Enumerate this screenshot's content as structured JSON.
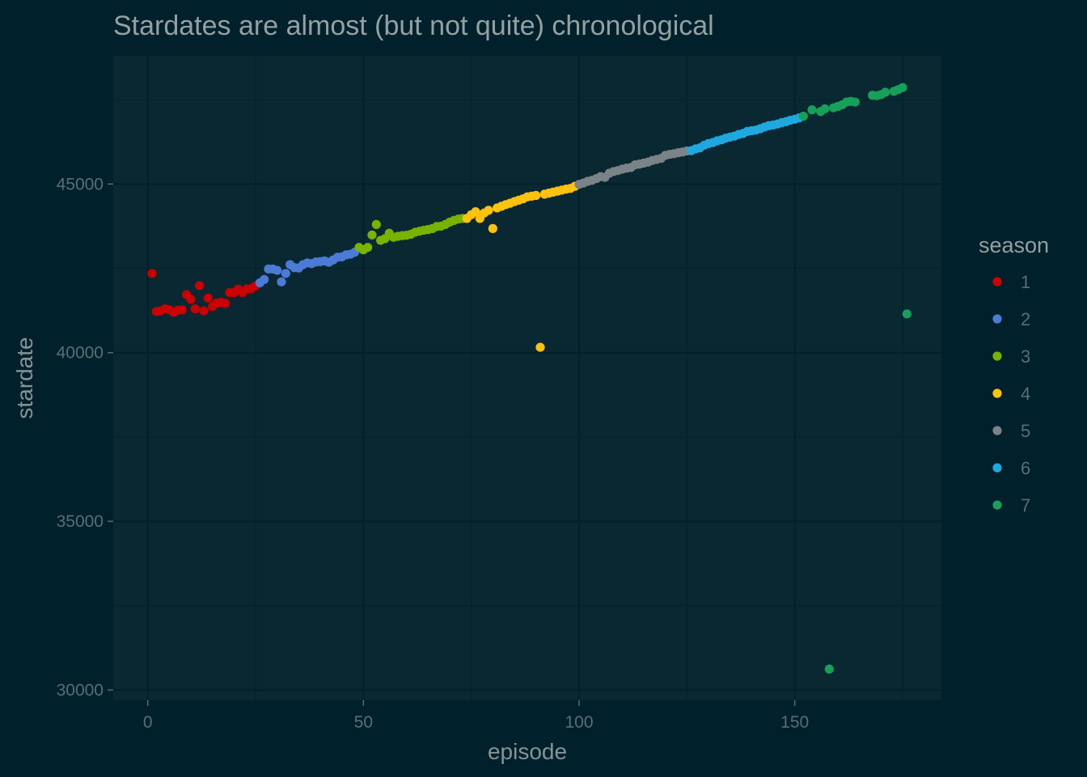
{
  "chart_data": {
    "type": "scatter",
    "title": "Stardates are almost (but not quite) chronological",
    "xlabel": "episode",
    "ylabel": "stardate",
    "xlim": [
      -8,
      184
    ],
    "ylim": [
      29700,
      48800
    ],
    "x_ticks": [
      0,
      50,
      100,
      150
    ],
    "x_tick_labels": [
      "0",
      "50",
      "100",
      "150"
    ],
    "y_ticks": [
      30000,
      35000,
      40000,
      45000
    ],
    "y_tick_labels": [
      "30000",
      "35000",
      "40000",
      "45000"
    ],
    "grid": true,
    "legend": {
      "title": "season",
      "placement": "right"
    },
    "series": [
      {
        "name": "1",
        "color": "#cc0000",
        "x": [
          1,
          2,
          3,
          4,
          5,
          6,
          7,
          8,
          9,
          10,
          11,
          12,
          13,
          14,
          15,
          16,
          17,
          18,
          19,
          20,
          21,
          22,
          23,
          24,
          25
        ],
        "y": [
          42350,
          41220,
          41240,
          41300,
          41270,
          41200,
          41260,
          41270,
          41720,
          41580,
          41300,
          41990,
          41240,
          41620,
          41370,
          41470,
          41490,
          41460,
          41780,
          41780,
          41880,
          41780,
          41890,
          41900,
          41980
        ]
      },
      {
        "name": "2",
        "color": "#4b7bd6",
        "x": [
          26,
          27,
          28,
          29,
          30,
          31,
          32,
          33,
          34,
          35,
          36,
          37,
          38,
          39,
          40,
          41,
          42,
          43,
          44,
          45,
          46,
          47,
          48
        ],
        "y": [
          42070,
          42170,
          42480,
          42480,
          42440,
          42100,
          42350,
          42610,
          42520,
          42510,
          42610,
          42660,
          42640,
          42690,
          42700,
          42720,
          42680,
          42750,
          42830,
          42840,
          42900,
          42920,
          42980
        ]
      },
      {
        "name": "3",
        "color": "#78b300",
        "x": [
          49,
          50,
          51,
          52,
          53,
          54,
          55,
          56,
          57,
          58,
          59,
          60,
          61,
          62,
          63,
          64,
          65,
          66,
          67,
          68,
          69,
          70,
          71,
          72,
          73
        ],
        "y": [
          43120,
          43050,
          43120,
          43490,
          43800,
          43330,
          43380,
          43540,
          43420,
          43450,
          43470,
          43480,
          43510,
          43570,
          43600,
          43630,
          43650,
          43680,
          43740,
          43750,
          43800,
          43870,
          43920,
          43960,
          43980
        ]
      },
      {
        "name": "4",
        "color": "#ffc20e",
        "x": [
          74,
          75,
          76,
          77,
          78,
          79,
          80,
          81,
          82,
          83,
          84,
          85,
          86,
          87,
          88,
          89,
          90,
          91,
          92,
          93,
          94,
          95,
          96,
          97,
          98,
          99
        ],
        "y": [
          43980,
          44090,
          44180,
          43980,
          44140,
          44220,
          43680,
          44290,
          44340,
          44390,
          44430,
          44480,
          44520,
          44560,
          44620,
          44640,
          44660,
          40160,
          44700,
          44730,
          44760,
          44790,
          44820,
          44850,
          44870,
          44930
        ]
      },
      {
        "name": "5",
        "color": "#7a8387",
        "x": [
          100,
          101,
          102,
          103,
          104,
          105,
          106,
          107,
          108,
          109,
          110,
          111,
          112,
          113,
          114,
          115,
          116,
          117,
          118,
          119,
          120,
          121,
          122,
          123,
          124,
          125
        ],
        "y": [
          44990,
          45030,
          45080,
          45110,
          45160,
          45220,
          45200,
          45320,
          45370,
          45400,
          45440,
          45470,
          45490,
          45570,
          45590,
          45620,
          45650,
          45700,
          45730,
          45760,
          45850,
          45880,
          45900,
          45930,
          45950,
          45980
        ]
      },
      {
        "name": "6",
        "color": "#1fa8e0",
        "x": [
          126,
          127,
          128,
          129,
          130,
          131,
          132,
          133,
          134,
          135,
          136,
          137,
          138,
          139,
          140,
          141,
          142,
          143,
          144,
          145,
          146,
          147,
          148,
          149,
          150,
          151
        ],
        "y": [
          45990,
          46040,
          46070,
          46150,
          46200,
          46230,
          46280,
          46310,
          46360,
          46390,
          46420,
          46470,
          46500,
          46560,
          46580,
          46600,
          46640,
          46690,
          46730,
          46750,
          46780,
          46820,
          46850,
          46890,
          46920,
          46960
        ]
      },
      {
        "name": "7",
        "color": "#16a05a",
        "x": [
          152,
          154,
          156,
          157,
          158,
          159,
          160,
          161,
          162,
          163,
          164,
          168,
          169,
          170,
          171,
          173,
          174,
          175,
          176
        ],
        "y": [
          47010,
          47200,
          47150,
          47230,
          30620,
          47260,
          47300,
          47350,
          47430,
          47450,
          47430,
          47630,
          47620,
          47650,
          47720,
          47750,
          47800,
          47860,
          41150
        ]
      }
    ]
  }
}
